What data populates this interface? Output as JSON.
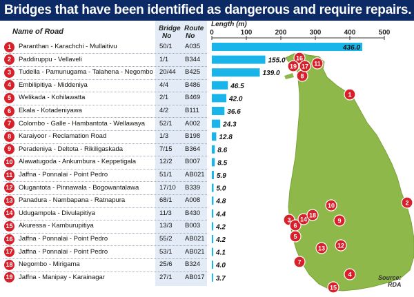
{
  "title": "Bridges that have been identified as dangerous and require repairs.",
  "headers": {
    "name": "Name of Road",
    "bridge_no_1": "Bridge",
    "bridge_no_2": "No",
    "route_no_1": "Route",
    "route_no_2": "No",
    "length": "Length (m)"
  },
  "source_1": "Source:",
  "source_2": "RDA",
  "colors": {
    "title_bg": "#0b2a66",
    "bar": "#19b5ea",
    "badge": "#d8202a",
    "map_land": "#8fb84a",
    "header_band": "#e3ecf6"
  },
  "rows": [
    {
      "n": "1",
      "name": "Paranthan - Karachchi - Mullaitivu",
      "bridge": "50/1",
      "route": "A035",
      "label": "436.0"
    },
    {
      "n": "2",
      "name": "Paddiruppu - Vellaveli",
      "bridge": "1/1",
      "route": "B344",
      "label": "155.0"
    },
    {
      "n": "3",
      "name": "Tudella - Pamunugama - Talahena - Negombo",
      "bridge": "20/44",
      "route": "B425",
      "label": "139.0"
    },
    {
      "n": "4",
      "name": "Embilipitiya - Middeniya",
      "bridge": "4/4",
      "route": "B486",
      "label": "46.5"
    },
    {
      "n": "5",
      "name": "Welikada - Kohilawatta",
      "bridge": "2/1",
      "route": "B469",
      "label": "42.0"
    },
    {
      "n": "6",
      "name": "Ekala - Kotadeniyawa",
      "bridge": "4/2",
      "route": "B111",
      "label": "36.6"
    },
    {
      "n": "7",
      "name": "Colombo - Galle - Hambantota - Wellawaya",
      "bridge": "52/1",
      "route": "A002",
      "label": "24.3"
    },
    {
      "n": "8",
      "name": "Karaiyoor - Reclamation Road",
      "bridge": "1/3",
      "route": "B198",
      "label": "12.8"
    },
    {
      "n": "9",
      "name": "Peradeniya - Deltota - Rikiligaskada",
      "bridge": "7/15",
      "route": "B364",
      "label": "8.6"
    },
    {
      "n": "10",
      "name": "Alawatugoda - Ankumbura - Keppetigala",
      "bridge": "12/2",
      "route": "B007",
      "label": "8.5"
    },
    {
      "n": "11",
      "name": "Jaffna - Ponnalai - Point Pedro",
      "bridge": "51/1",
      "route": "AB021",
      "label": "5.9"
    },
    {
      "n": "12",
      "name": "Olugantota - Pinnawala - Bogowantalawa",
      "bridge": "17/10",
      "route": "B339",
      "label": "5.0"
    },
    {
      "n": "13",
      "name": "Panadura - Nambapana - Ratnapura",
      "bridge": "68/1",
      "route": "A008",
      "label": "4.8"
    },
    {
      "n": "14",
      "name": "Udugampola - Divulapitiya",
      "bridge": "11/3",
      "route": "B430",
      "label": "4.4"
    },
    {
      "n": "15",
      "name": "Akuressa - Kamburupitiya",
      "bridge": "13/3",
      "route": "B003",
      "label": "4.2"
    },
    {
      "n": "16",
      "name": "Jaffna - Ponnalai - Point Pedro",
      "bridge": "55/2",
      "route": "AB021",
      "label": "4.2"
    },
    {
      "n": "17",
      "name": "Jaffna - Ponnalai - Point Pedro",
      "bridge": "53/1",
      "route": "AB021",
      "label": "4.1"
    },
    {
      "n": "18",
      "name": "Negombo - Mirigama",
      "bridge": "25/6",
      "route": "B324",
      "label": "4.0"
    },
    {
      "n": "19",
      "name": "Jaffna - Manipay - Karainagar",
      "bridge": "27/1",
      "route": "AB017",
      "label": "3.7"
    }
  ],
  "chart_data": {
    "type": "bar",
    "orientation": "horizontal",
    "title": "Bridges that have been identified as dangerous and require repairs.",
    "xlabel": "Length (m)",
    "ylabel": "",
    "xlim": [
      0,
      500
    ],
    "xticks": [
      "0",
      "100",
      "200",
      "300",
      "400",
      "500"
    ],
    "categories": [
      "Paranthan - Karachchi - Mullaitivu",
      "Paddiruppu - Vellaveli",
      "Tudella - Pamunugama - Talahena - Negombo",
      "Embilipitiya - Middeniya",
      "Welikada - Kohilawatta",
      "Ekala - Kotadeniyawa",
      "Colombo - Galle - Hambantota - Wellawaya",
      "Karaiyoor - Reclamation Road",
      "Peradeniya - Deltota - Rikiligaskada",
      "Alawatugoda - Ankumbura - Keppetigala",
      "Jaffna - Ponnalai - Point Pedro",
      "Olugantota - Pinnawala - Bogowantalawa",
      "Panadura - Nambapana - Ratnapura",
      "Udugampola - Divulapitiya",
      "Akuressa - Kamburupitiya",
      "Jaffna - Ponnalai - Point Pedro",
      "Jaffna - Ponnalai - Point Pedro",
      "Negombo - Mirigama",
      "Jaffna - Manipay - Karainagar"
    ],
    "values": [
      436.0,
      155.0,
      139.0,
      46.5,
      42.0,
      36.6,
      24.3,
      12.8,
      8.6,
      8.5,
      5.9,
      5.0,
      4.8,
      4.4,
      4.2,
      4.2,
      4.1,
      4.0,
      3.7
    ],
    "grid": false,
    "legend": "none"
  },
  "map_markers": [
    "1",
    "2",
    "3",
    "4",
    "5",
    "6",
    "7",
    "8",
    "9",
    "10",
    "11",
    "12",
    "13",
    "14",
    "15",
    "16",
    "17",
    "18",
    "19"
  ]
}
